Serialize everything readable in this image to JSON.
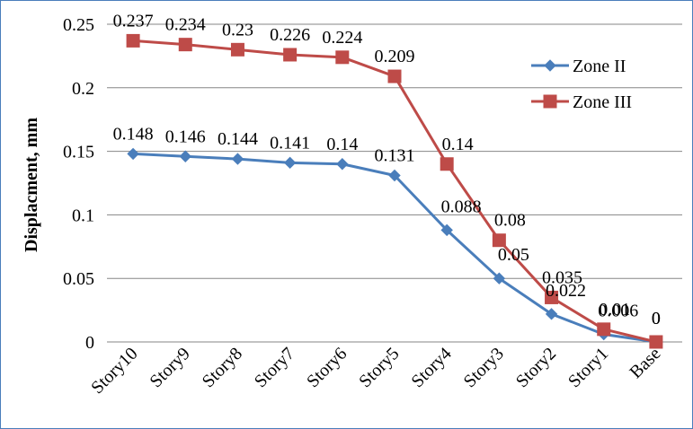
{
  "chart_data": {
    "type": "line",
    "categories": [
      "Story10",
      "Story9",
      "Story8",
      "Story7",
      "Story6",
      "Story5",
      "Story4",
      "Story3",
      "Story2",
      "Story1",
      "Base"
    ],
    "series": [
      {
        "name": "Zone II",
        "color": "#4a7ebb",
        "marker": "diamond",
        "values": [
          0.148,
          0.146,
          0.144,
          0.141,
          0.14,
          0.131,
          0.088,
          0.05,
          0.022,
          0.006,
          0
        ],
        "labels": [
          "0.148",
          "0.146",
          "0.144",
          "0.141",
          "0.14",
          "0.131",
          "0.088",
          "0.05",
          "0.022",
          "0.006",
          "0"
        ]
      },
      {
        "name": "Zone III",
        "color": "#be4b48",
        "marker": "square",
        "values": [
          0.237,
          0.234,
          0.23,
          0.226,
          0.224,
          0.209,
          0.14,
          0.08,
          0.035,
          0.01,
          0
        ],
        "labels": [
          "0.237",
          "0.234",
          "0.23",
          "0.226",
          "0.224",
          "0.209",
          "0.14",
          "0.08",
          "0.035",
          "0.01",
          "0"
        ]
      }
    ],
    "ylabel": "Displacment, mm",
    "xlabel": "",
    "ylim": [
      0,
      0.25
    ],
    "yticks": [
      "0",
      "0.05",
      "0.1",
      "0.15",
      "0.2",
      "0.25"
    ],
    "grid": true,
    "legend": "top-right"
  }
}
